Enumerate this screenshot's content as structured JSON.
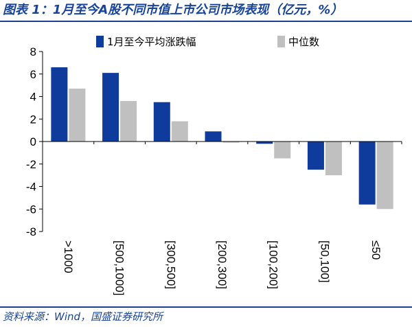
{
  "title": "图表 1：1月至今A股不同市值上市公司市场表现（亿元，%）",
  "source": "资料来源：Wind，国盛证券研究所",
  "chart_data": {
    "type": "bar",
    "categories": [
      ">1000",
      "[500,1000]",
      "[300,500]",
      "[200,300]",
      "[100,200]",
      "[50,100]",
      "≤50"
    ],
    "series": [
      {
        "name": "1月至今平均涨跌幅",
        "color": "#0f3b9c",
        "values": [
          6.6,
          6.1,
          3.5,
          0.9,
          -0.2,
          -2.5,
          -5.6
        ]
      },
      {
        "name": "中位数",
        "color": "#c0c0c0",
        "values": [
          4.7,
          3.6,
          1.8,
          -0.1,
          -1.5,
          -3.0,
          -6.0
        ]
      }
    ],
    "ylim": [
      -8,
      8
    ],
    "yticks": [
      -8,
      -6,
      -4,
      -2,
      0,
      2,
      4,
      6,
      8
    ],
    "legend": "top-right",
    "grid": false
  }
}
